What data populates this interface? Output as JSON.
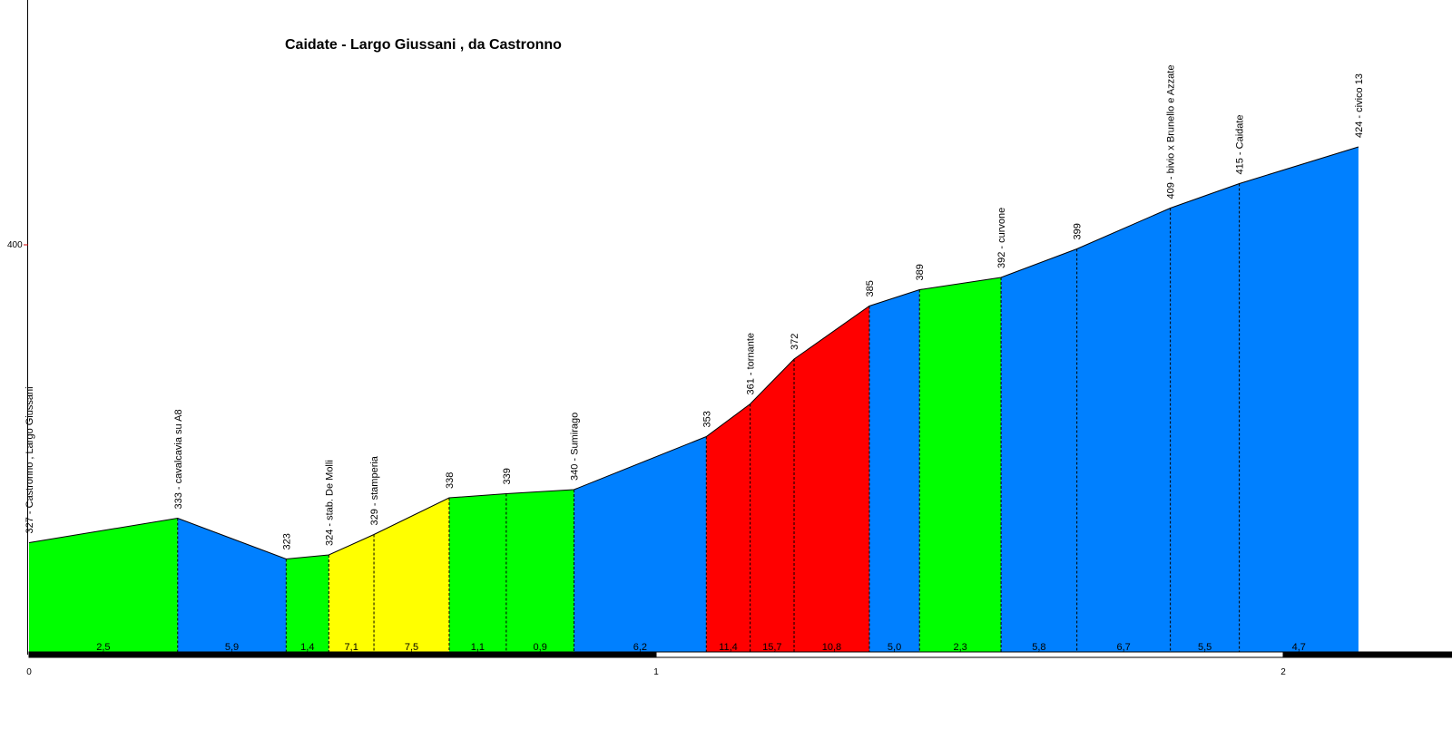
{
  "chart_data": {
    "type": "area",
    "title": "Caidate - Largo Giussani , da Castronno",
    "xlabel": "",
    "ylabel": "",
    "x_ticks": [
      0,
      1,
      2
    ],
    "y_ticks": [
      400
    ],
    "xlim": [
      0,
      2.225
    ],
    "ylim": [
      308,
      436
    ],
    "grid": false,
    "points": [
      {
        "x": 0.0,
        "y": 327,
        "label": "327 - Castronno , Largo Giussani"
      },
      {
        "x": 0.237,
        "y": 333,
        "label": "333 - cavalcavia su A8"
      },
      {
        "x": 0.41,
        "y": 323,
        "label": "323"
      },
      {
        "x": 0.478,
        "y": 324,
        "label": "324 - stab. De Molli"
      },
      {
        "x": 0.55,
        "y": 329,
        "label": "329 - stamperia"
      },
      {
        "x": 0.67,
        "y": 338,
        "label": "338"
      },
      {
        "x": 0.761,
        "y": 339,
        "label": "339"
      },
      {
        "x": 0.869,
        "y": 340,
        "label": "340 - Sumirago"
      },
      {
        "x": 1.08,
        "y": 353,
        "label": "353"
      },
      {
        "x": 1.15,
        "y": 361,
        "label": "361 - tornante"
      },
      {
        "x": 1.22,
        "y": 372,
        "label": "372"
      },
      {
        "x": 1.34,
        "y": 385,
        "label": "385"
      },
      {
        "x": 1.42,
        "y": 389,
        "label": "389"
      },
      {
        "x": 1.55,
        "y": 392,
        "label": "392 - curvone"
      },
      {
        "x": 1.671,
        "y": 399,
        "label": "399"
      },
      {
        "x": 1.82,
        "y": 409,
        "label": "409 - bivio x Brunello e Azzate"
      },
      {
        "x": 1.93,
        "y": 415,
        "label": "415 - Caidate"
      },
      {
        "x": 2.12,
        "y": 424,
        "label": "424 - civico 13"
      }
    ],
    "segments": [
      {
        "grade": "2,5",
        "color": "#00ff00"
      },
      {
        "grade": "5,9",
        "color": "#0080ff"
      },
      {
        "grade": "1,4",
        "color": "#00ff00"
      },
      {
        "grade": "7,1",
        "color": "#ffff00"
      },
      {
        "grade": "7,5",
        "color": "#ffff00"
      },
      {
        "grade": "1,1",
        "color": "#00ff00"
      },
      {
        "grade": "0,9",
        "color": "#00ff00"
      },
      {
        "grade": "6,2",
        "color": "#0080ff"
      },
      {
        "grade": "11,4",
        "color": "#ff0000"
      },
      {
        "grade": "15,7",
        "color": "#ff0000"
      },
      {
        "grade": "10,8",
        "color": "#ff0000"
      },
      {
        "grade": "5,0",
        "color": "#0080ff"
      },
      {
        "grade": "2,3",
        "color": "#00ff00"
      },
      {
        "grade": "5,8",
        "color": "#0080ff"
      },
      {
        "grade": "6,7",
        "color": "#0080ff"
      },
      {
        "grade": "5,5",
        "color": "#0080ff"
      },
      {
        "grade": "4,7",
        "color": "#0080ff"
      }
    ]
  }
}
